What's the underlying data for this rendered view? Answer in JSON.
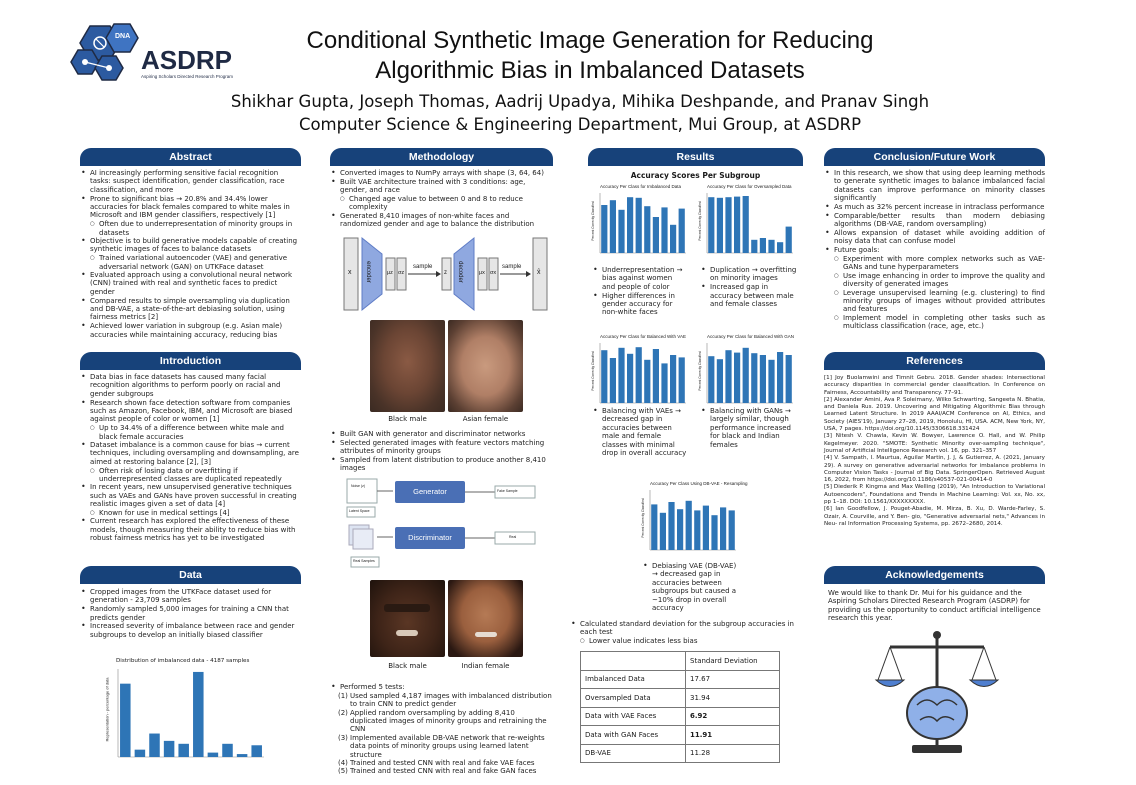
{
  "header": {
    "logo_text": "ASDRP",
    "logo_subtitle": "Aspiring Scholars Directed Research Program",
    "logo_badge": "DNA",
    "title_line1": "Conditional Synthetic Image Generation for Reducing",
    "title_line2": "Algorithmic Bias in Imbalanced Datasets",
    "authors": "Shikhar Gupta, Joseph Thomas, Aadrij Upadya, Mihika Deshpande, and Pranav Singh",
    "affiliation": "Computer Science & Engineering Department, Mui Group, at ASDRP"
  },
  "abstract": {
    "heading": "Abstract",
    "b1": "AI increasingly performing sensitive facial recognition tasks: suspect identification, gender classification, race classification, and more",
    "b2": "Prone to significant bias → 20.8% and 34.4% lower accuracies for black females compared to white males in Microsoft and IBM gender classifiers, respectively [1]",
    "b2s1": "Often due to underrepresentation of minority groups in datasets",
    "b3": "Objective is to build generative models capable of creating synthetic images of faces to balance datasets",
    "b3s1": "Trained variational autoencoder (VAE) and generative adversarial network (GAN) on UTKFace dataset",
    "b4": "Evaluated approach using a convolutional neural network (CNN) trained with real and synthetic faces to predict gender",
    "b5": "Compared results to simple oversampling via duplication and DB-VAE, a state-of-the-art debiasing solution, using fairness metrics [2]",
    "b6": "Achieved lower variation in subgroup (e.g. Asian male) accuracies while maintaining accuracy, reducing bias"
  },
  "introduction": {
    "heading": "Introduction",
    "b1": "Data bias in face datasets has caused many facial recognition algorithms to perform poorly on racial and gender subgroups",
    "b2": "Research shown face detection software from companies such as Amazon, Facebook, IBM, and Microsoft are biased against people of color or women [1]",
    "b2s1": "Up to 34.4% of a difference between white male and black female accuracies",
    "b3": "Dataset imbalance is a common cause for bias → current techniques, including oversampling and downsampling, are aimed at restoring balance [2], [3]",
    "b3s1": "Often risk of losing data or overfitting if underrepresented classes are duplicated repeatedly",
    "b4": "In recent years, new unsupervised generative techniques such as VAEs and GANs have proven successful in creating realistic images given a set of data [4]",
    "b4s1": "Known for use in medical settings [4]",
    "b5": "Current research has explored the effectiveness of these models, though measuring their ability to reduce bias with robust fairness metrics has yet to be investigated"
  },
  "data": {
    "heading": "Data",
    "b1": "Cropped images from the UTKFace dataset used for generation - 23,709 samples",
    "b2": "Randomly sampled 5,000 images for training a CNN that predicts gender",
    "b3": "Increased severity of imbalance between race and gender subgroups to develop an initially biased classifier",
    "chart_title": "Distribution of imbalanced data - 4187 samples",
    "chart_ylabel": "Representation - percentage of data"
  },
  "methodology": {
    "heading": "Methodology",
    "b1": "Converted images to NumPy arrays with shape (3, 64, 64)",
    "b2": "Built VAE architecture trained with 3 conditions: age, gender, and race",
    "b2s1": "Changed age value to between 0 and 8 to reduce complexity",
    "b3": "Generated 8,410 images of non-white faces and randomized gender and age to balance the distribution",
    "vae": {
      "x_in": "x",
      "encoder": "encoder",
      "mu": "μz",
      "sigma": "σz",
      "sample": "sample",
      "z": "z",
      "decoder": "decoder",
      "mu_x": "μx",
      "sigma_x": "σx",
      "sample2": "sample",
      "x_out": "x̂"
    },
    "cap_black_male": "Black male",
    "cap_asian_female": "Asian female",
    "b4": "Built GAN with generator and discriminator networks",
    "b5": "Selected generated images with feature vectors matching attributes of minority groups",
    "b6": "Sampled from latent distribution to produce another 8,410 images",
    "gan": {
      "noise": "Noise (z)",
      "latent_space": "Latent Space",
      "generator": "Generator",
      "fake_sample": "Fake Sample",
      "discriminator": "Discriminator",
      "real_samples": "Real Samples",
      "real": "Real"
    },
    "cap_black_male2": "Black male",
    "cap_indian_female": "Indian female",
    "tests_intro": "Performed 5 tests:",
    "t1": "Used sampled 4,187 images with imbalanced distribution to train CNN to predict gender",
    "t2": "Applied random oversampling by adding 8,410 duplicated images of minority groups and retraining the CNN",
    "t3": "Implemented available DB-VAE network that re-weights data points of minority groups using learned latent structure",
    "t4": "Trained and tested CNN with real and fake VAE faces",
    "t5": "Trained and tested CNN with real and fake GAN faces"
  },
  "results": {
    "heading": "Results",
    "subheading": "Accuracy Scores Per Subgroup",
    "c1_title": "Accuracy Per Class for Imbalanced Data",
    "c2_title": "Accuracy Per Class for Oversampled Data",
    "c3_title": "Accuracy Per Class for Balanced With VAE",
    "c4_title": "Accuracy Per Class for Balanced With GAN",
    "c5_title": "Accuracy Per Class Using DB-VAE - Resampling",
    "mini_ylabel": "Percent Correctly Classified",
    "r1a": "Underrepresentation → bias against women and people of color",
    "r1b": "Higher differences in gender accuracy for non-white faces",
    "r2a": "Duplication → overfitting on minority images",
    "r2b": "Increased gap in accuracy between male and female classes",
    "r3": "Balancing with VAEs → decreased gap in accuracies between male and female classes with minimal drop in overall accuracy",
    "r4": "Balancing with GANs → largely similar, though performance increased for black and Indian females",
    "r5": "Debiasing VAE (DB-VAE) → decreased gap in accuracies between subgroups but caused a ~10% drop in overall accuracy",
    "sd1": "Calculated standard deviation for the subgroup accuracies in each test",
    "sd1s": "Lower value indicates less bias",
    "table_header": "Standard Deviation",
    "rows": [
      {
        "label": "Imbalanced Data",
        "value": "17.67",
        "bold": false
      },
      {
        "label": "Oversampled Data",
        "value": "31.94",
        "bold": false
      },
      {
        "label": "Data with VAE Faces",
        "value": "6.92",
        "bold": true
      },
      {
        "label": "Data with GAN Faces",
        "value": "11.91",
        "bold": true
      },
      {
        "label": "DB-VAE",
        "value": "11.28",
        "bold": false
      }
    ]
  },
  "conclusion": {
    "heading": "Conclusion/Future Work",
    "b1": "In this research, we show that using deep learning methods to generate synthetic images to balance imbalanced facial datasets can improve performance on minority classes significantly",
    "b2": "As much as 32% percent increase in intraclass performance",
    "b3": "Comparable/better results than modern debiasing algorithms (DB-VAE, random oversampling)",
    "b4": "Allows expansion of dataset while avoiding addition of noisy data that can confuse model",
    "b5": "Future goals:",
    "b5s1": "Experiment with more complex networks such as VAE-GANs and tune hyperparameters",
    "b5s2": "Use image enhancing in order to improve the quality and diversity of generated images",
    "b5s3": "Leverage unsupervised learning (e.g. clustering) to find minority groups of images without provided attributes and features",
    "b5s4": "Implement model in completing other tasks such as multiclass classification (race, age, etc.)"
  },
  "references": {
    "heading": "References",
    "r1": "[1] Joy Buolamwini and Timnit Gebru. 2018. Gender shades: Intersectional accuracy disparities in commercial gender classification. In Conference on Fairness, Accountability and Transparency. 77–91.",
    "r2": "[2] Alexander Amini, Ava P. Soleimany, Wilko Schwarting, Sangeeta N. Bhatia, and Daniela Rus. 2019. Uncovering and Mitigating Algorithmic Bias through Learned Latent Structure. In 2019 AAAI/ACM Conference on AI, Ethics, and Society (AIES'19), January 27–28, 2019, Honolulu, HI, USA. ACM, New York, NY, USA, 7 pages. https://doi.org/10.1145/3306618.331424",
    "r3": "[3] Nitesh V. Chawla, Kevin W. Bowyer, Lawrence O. Hall, and W. Philip Kegelmeyer. 2020. \"SMOTE: Synthetic Minority over-sampling technique\", Journal of Artificial Intelligence Research vol. 16, pp. 321–357",
    "r4": "[4] V. Sampath, I. Maurtua, Aguilar Martin, J. J, & Gutierrez, A. (2021, January 29). A survey on generative adversarial networks for imbalance problems in Computer Vision Tasks - Journal of Big Data. SpringerOpen. Retrieved August 16, 2022, from https://doi.org/10.1186/s40537-021-00414-0",
    "r5": "[5] Diederik P. Kingma and Max Welling (2019), \"An Introduction to Variational Autoencoders\", Foundations and Trends in Machine Learning: Vol. xx, No. xx, pp 1–18. DOI: 10.1561/XXXXXXXXX.",
    "r6": "[6] Ian Goodfellow, J. Pouget-Abadie, M. Mirza, B. Xu, D. Warde-Farley, S. Ozair, A. Courville, and Y. Ben- gio, \"Generative adversarial nets,\" Advances in Neu- ral Information Processing Systems, pp. 2672–2680, 2014."
  },
  "acknowledgements": {
    "heading": "Acknowledgements",
    "text": "We would like to thank Dr. Mui for his guidance and the Aspiring Scholars Directed Research Program (ASDRP) for providing us the opportunity to conduct artificial intelligence research this year."
  },
  "colors": {
    "header_blue": "#17427a",
    "bar_blue": "#2e75b6"
  },
  "chart_data": [
    {
      "type": "bar",
      "title": "Distribution of imbalanced data - 4187 samples",
      "ylabel": "Representation - percentage of data",
      "ylim": [
        0,
        30
      ],
      "values": [
        25,
        2.5,
        8,
        5.5,
        4.5,
        29,
        1.5,
        4.5,
        1,
        4
      ]
    },
    {
      "type": "bar",
      "title": "Accuracy Per Class for Imbalanced Data",
      "ylim": [
        0,
        100
      ],
      "values": [
        80,
        88,
        72,
        93,
        92,
        78,
        60,
        76,
        47,
        74
      ]
    },
    {
      "type": "bar",
      "title": "Accuracy Per Class for Oversampled Data",
      "ylim": [
        0,
        100
      ],
      "values": [
        93,
        92,
        93,
        94,
        95,
        22,
        25,
        22,
        18,
        44
      ]
    },
    {
      "type": "bar",
      "title": "Accuracy Per Class for Balanced With VAE",
      "ylim": [
        0,
        100
      ],
      "values": [
        88,
        75,
        92,
        82,
        93,
        72,
        90,
        66,
        80,
        76
      ]
    },
    {
      "type": "bar",
      "title": "Accuracy Per Class for Balanced With GAN",
      "ylim": [
        0,
        100
      ],
      "values": [
        78,
        73,
        88,
        84,
        92,
        83,
        80,
        72,
        85,
        80
      ]
    },
    {
      "type": "bar",
      "title": "Accuracy Per Class Using DB-VAE - Resampling",
      "ylim": [
        0,
        100
      ],
      "values": [
        76,
        62,
        80,
        68,
        82,
        66,
        74,
        58,
        71,
        66
      ]
    }
  ]
}
